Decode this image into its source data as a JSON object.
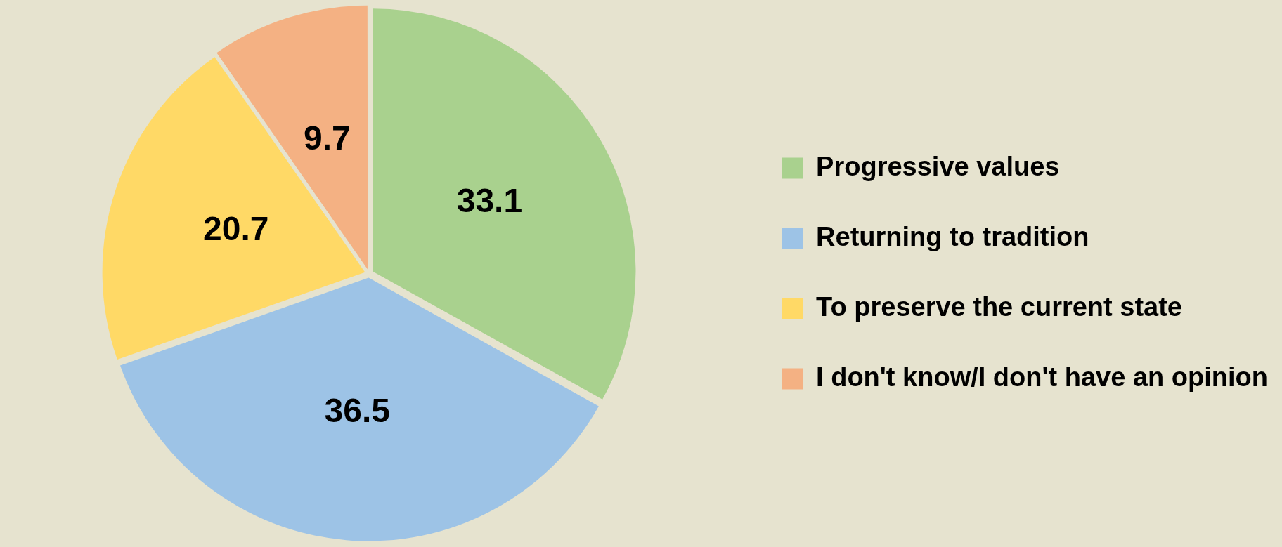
{
  "chart_data": {
    "type": "pie",
    "categories": [
      "Progressive values",
      "Returning to tradition",
      "To preserve the current state",
      "I don't know/I don't have an opinion"
    ],
    "values": [
      33.1,
      36.5,
      20.7,
      9.7
    ],
    "colors": [
      "#a9d18e",
      "#9dc3e6",
      "#ffd966",
      "#f4b183"
    ],
    "data_labels": true,
    "legend": "right"
  }
}
